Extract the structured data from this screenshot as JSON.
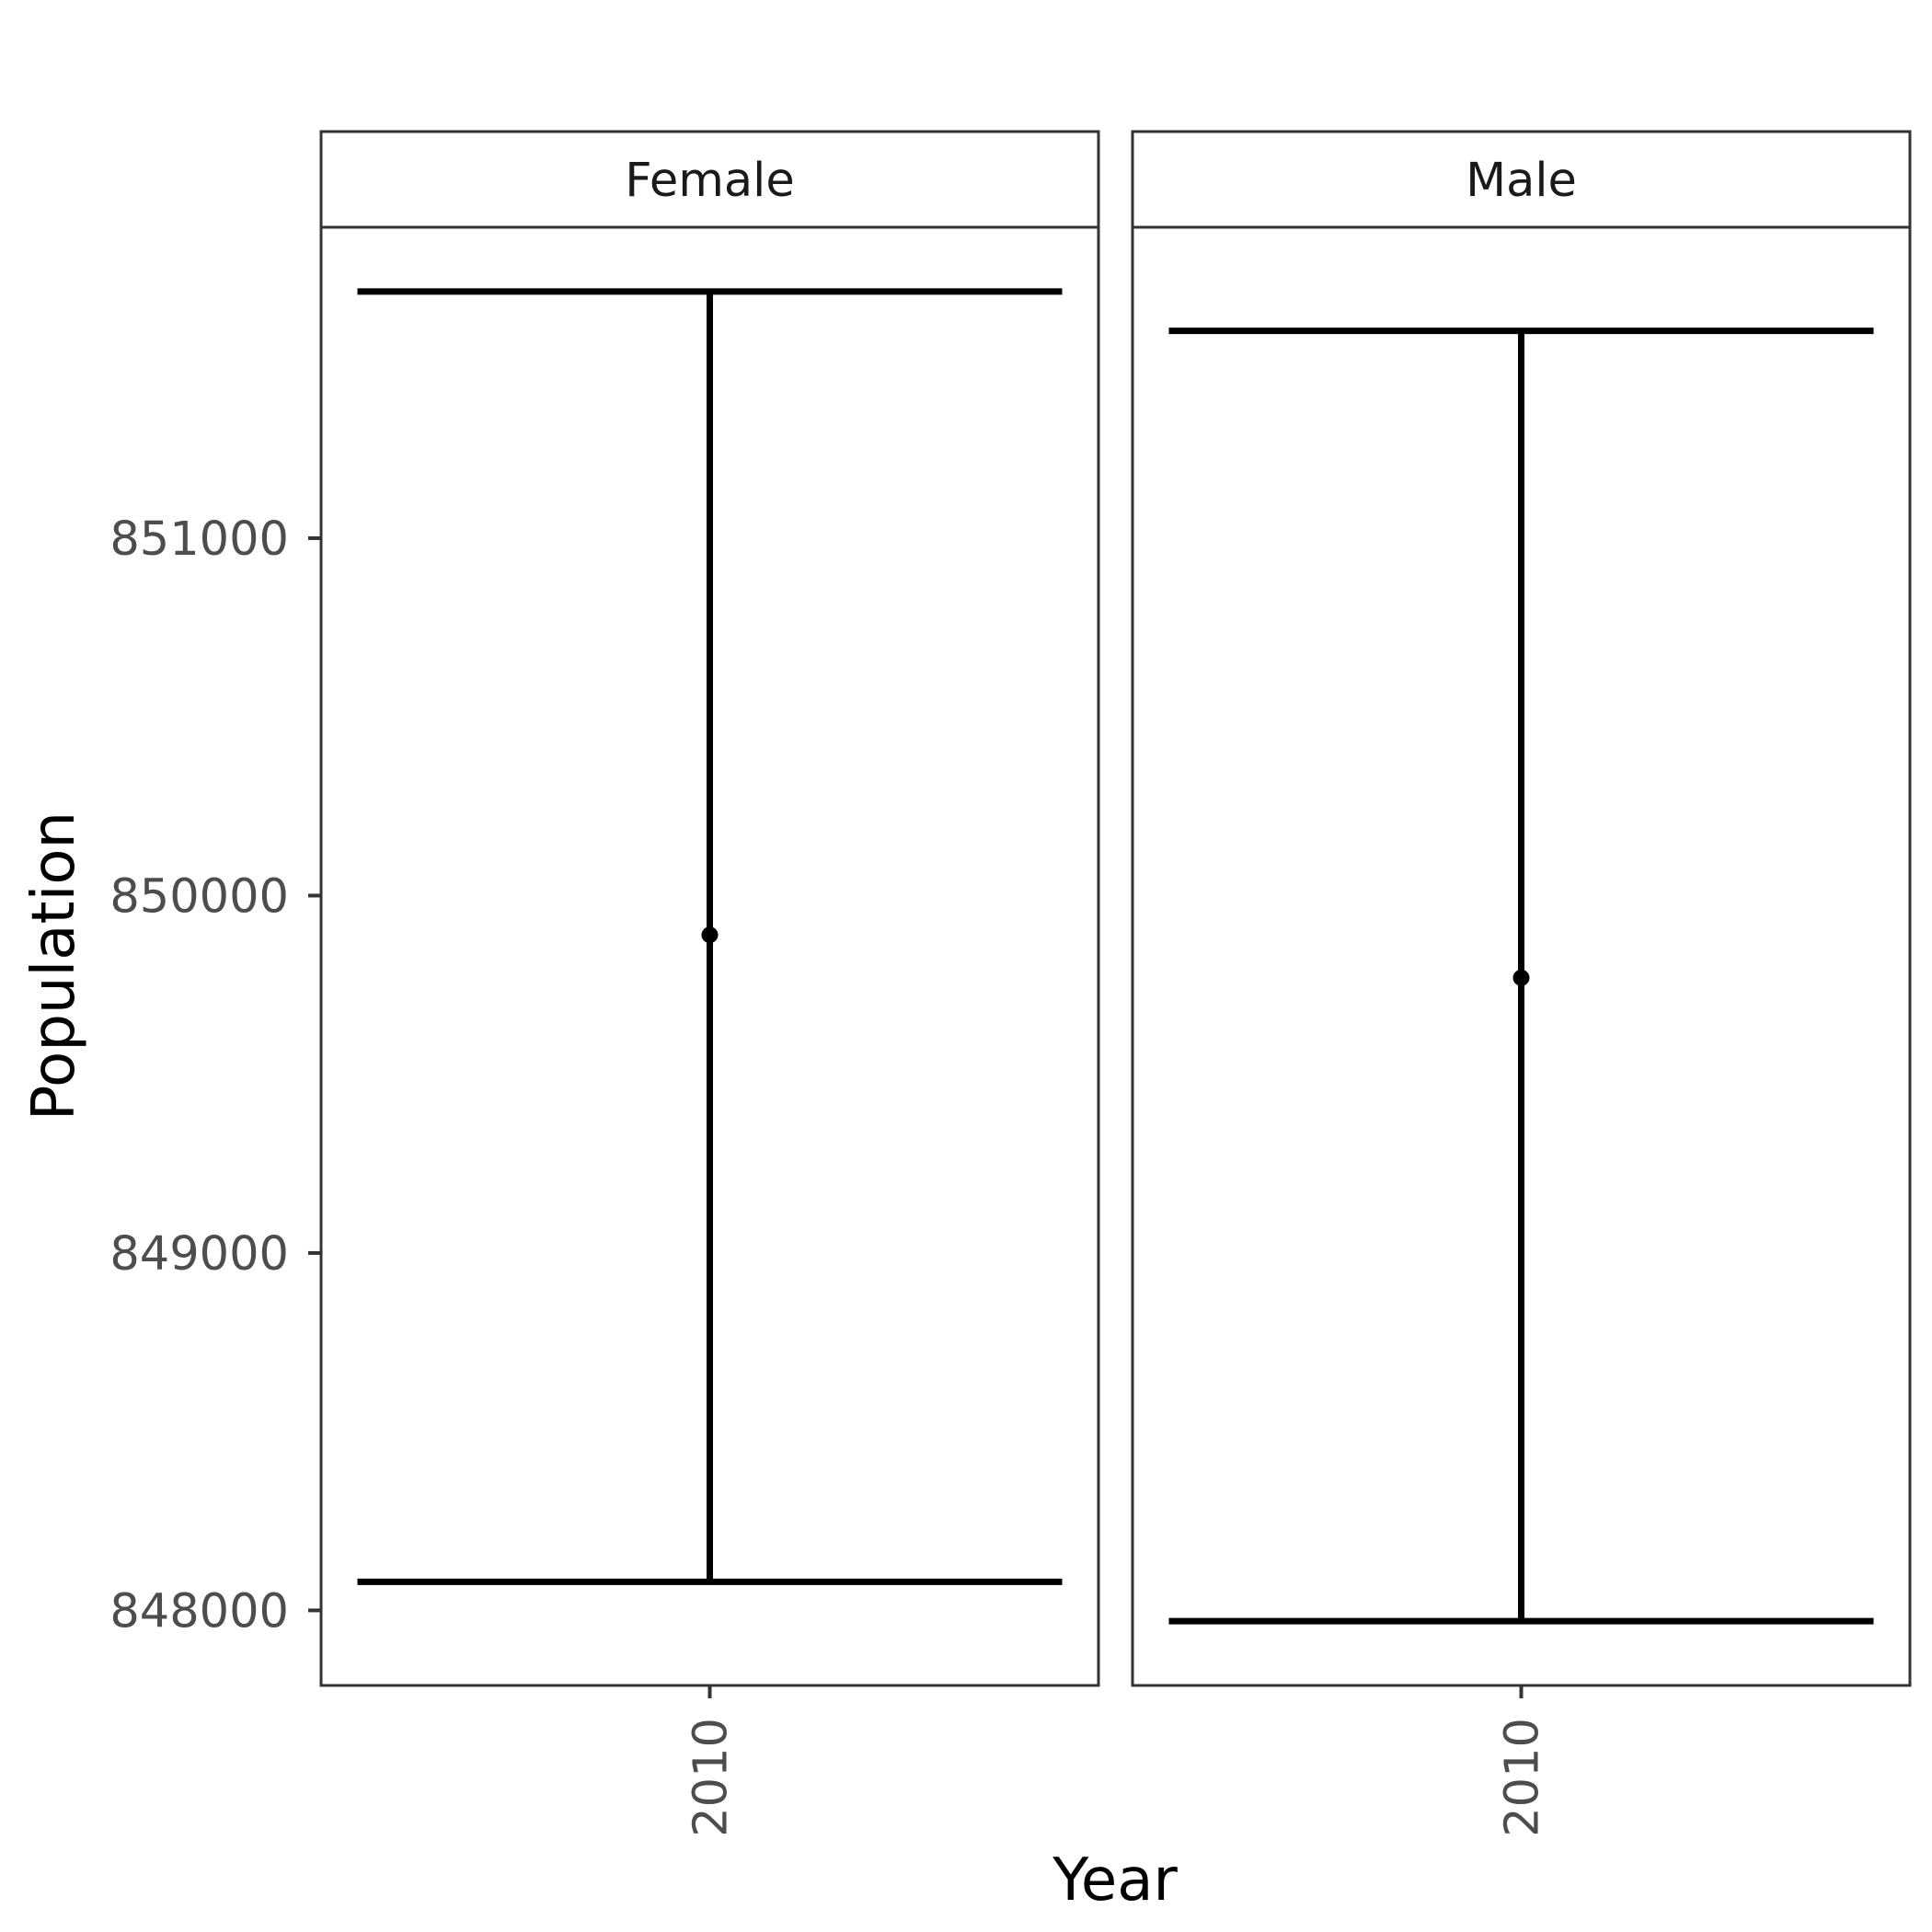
{
  "chart_data": {
    "type": "errorbar",
    "xlabel": "Year",
    "ylabel": "Population",
    "ylim": [
      847790,
      851870
    ],
    "yticks": [
      848000,
      849000,
      850000,
      851000
    ],
    "x_categories": [
      "2010"
    ],
    "panels": [
      {
        "facet": "Female",
        "points": [
          {
            "x": "2010",
            "y": 849890,
            "ymin": 848080,
            "ymax": 851690
          }
        ]
      },
      {
        "facet": "Male",
        "points": [
          {
            "x": "2010",
            "y": 849770,
            "ymin": 847970,
            "ymax": 851580
          }
        ]
      }
    ],
    "grid": false,
    "color": "#000000"
  }
}
